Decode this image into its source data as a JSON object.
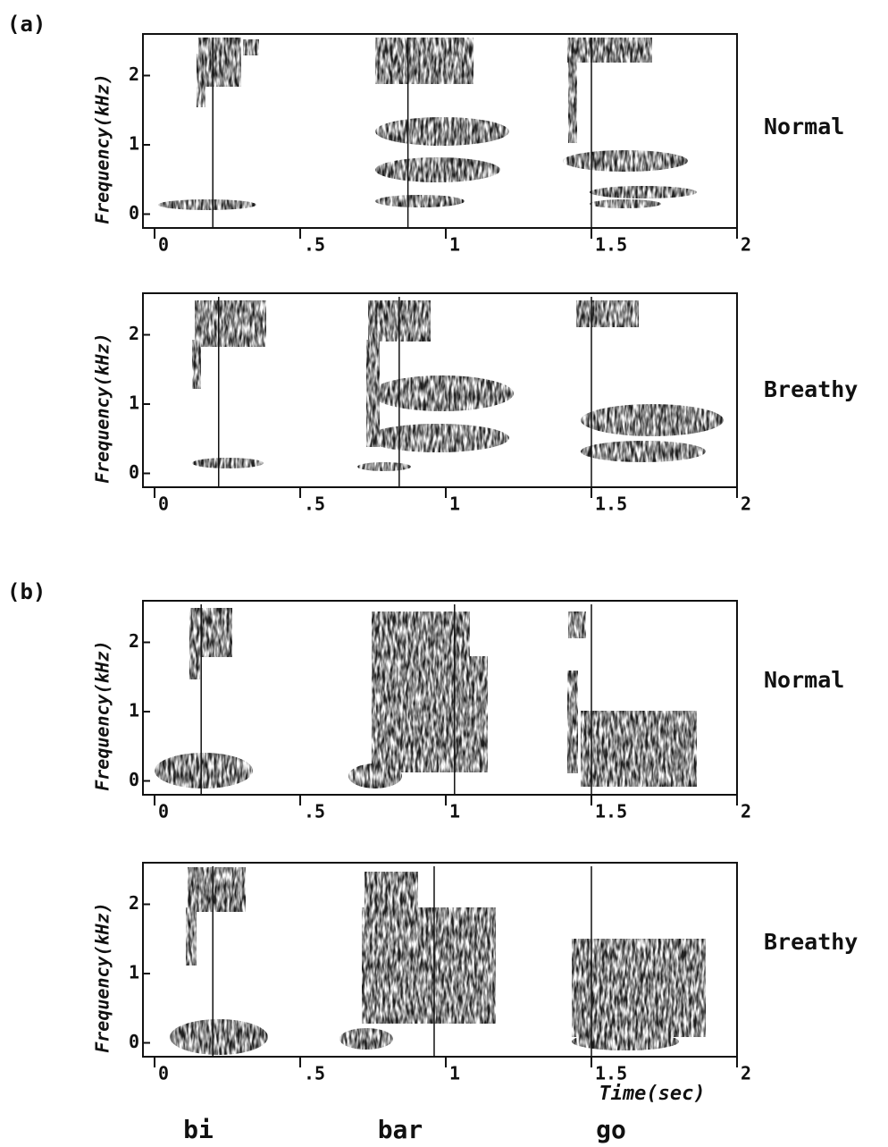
{
  "figure_labels": [
    "(a)",
    "(b)"
  ],
  "syllables": [
    "bi",
    "bar",
    "go"
  ],
  "chart_data": [
    {
      "type": "spectrogram",
      "title": "Normal",
      "ylabel": "Frequency(kHz)",
      "xlim": [
        -0.04,
        2
      ],
      "ylim": [
        -0.2,
        2.6
      ],
      "xticks": [
        0,
        {
          "value": 0.5,
          "label": ".5"
        },
        1,
        1.5,
        2
      ],
      "yticks": [
        0,
        1,
        2
      ],
      "markers": [
        0.2,
        0.87,
        1.5
      ]
    },
    {
      "type": "spectrogram",
      "title": "Breathy",
      "ylabel": "Frequency(kHz)",
      "xlim": [
        -0.04,
        2
      ],
      "ylim": [
        -0.2,
        2.6
      ],
      "xticks": [
        0,
        {
          "value": 0.5,
          "label": ".5"
        },
        1,
        1.5,
        2
      ],
      "yticks": [
        0,
        1,
        2
      ],
      "markers": [
        0.22,
        0.84,
        1.5
      ]
    },
    {
      "type": "spectrogram",
      "title": "Normal",
      "ylabel": "Frequency(kHz)",
      "xlim": [
        -0.04,
        2
      ],
      "ylim": [
        -0.2,
        2.6
      ],
      "xticks": [
        0,
        {
          "value": 0.5,
          "label": ".5"
        },
        1,
        1.5,
        2
      ],
      "yticks": [
        0,
        1,
        2
      ],
      "markers": [
        0.16,
        1.03,
        1.5
      ]
    },
    {
      "type": "spectrogram",
      "title": "Breathy",
      "ylabel": "Frequency(kHz)",
      "xlabel": "Time(sec)",
      "xlim": [
        -0.04,
        2
      ],
      "ylim": [
        -0.2,
        2.6
      ],
      "xticks": [
        0,
        {
          "value": 0.5,
          "label": ".5"
        },
        1,
        1.5,
        2
      ],
      "yticks": [
        0,
        1,
        2
      ],
      "markers": [
        0.2,
        0.96,
        1.5
      ]
    }
  ]
}
